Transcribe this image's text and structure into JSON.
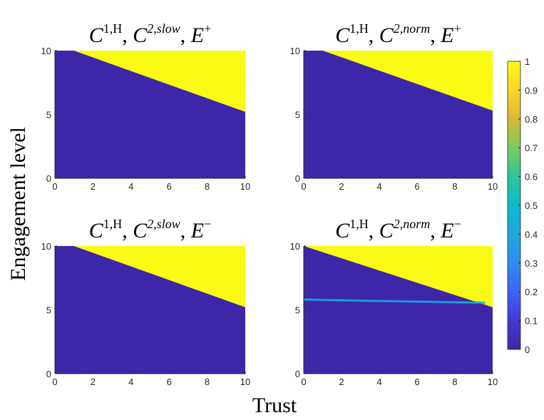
{
  "figure": {
    "xlabel": "Trust",
    "ylabel": "Engagement  level"
  },
  "chart_data": [
    {
      "type": "heatmap",
      "title": {
        "c1_sup": "1,H",
        "c2_sup": "2,slow",
        "e_sup": "+"
      },
      "xlim": [
        0,
        10
      ],
      "ylim": [
        0,
        10
      ],
      "xticks": [
        0,
        2,
        4,
        6,
        8,
        10
      ],
      "yticks": [
        0,
        5,
        10
      ],
      "boundary_line": {
        "x": [
          1.0,
          10
        ],
        "y": [
          10,
          5.2
        ]
      },
      "region_above_value": 1,
      "region_below_value": 0,
      "band": null
    },
    {
      "type": "heatmap",
      "title": {
        "c1_sup": "1,H",
        "c2_sup": "2,norm",
        "e_sup": "+"
      },
      "xlim": [
        0,
        10
      ],
      "ylim": [
        0,
        10
      ],
      "xticks": [
        0,
        2,
        4,
        6,
        8,
        10
      ],
      "yticks": [
        0,
        5,
        10
      ],
      "boundary_line": {
        "x": [
          1.0,
          10
        ],
        "y": [
          10,
          5.3
        ]
      },
      "region_above_value": 1,
      "region_below_value": 0,
      "band": null
    },
    {
      "type": "heatmap",
      "title": {
        "c1_sup": "1,H",
        "c2_sup": "2,slow",
        "e_sup": "−"
      },
      "xlim": [
        0,
        10
      ],
      "ylim": [
        0,
        10
      ],
      "xticks": [
        0,
        2,
        4,
        6,
        8,
        10
      ],
      "yticks": [
        0,
        5,
        10
      ],
      "boundary_line": {
        "x": [
          1.0,
          10
        ],
        "y": [
          10,
          5.2
        ]
      },
      "region_above_value": 1,
      "region_below_value": 0,
      "band": null
    },
    {
      "type": "heatmap",
      "title": {
        "c1_sup": "1,H",
        "c2_sup": "2,norm",
        "e_sup": "−"
      },
      "xlim": [
        0,
        10
      ],
      "ylim": [
        0,
        10
      ],
      "xticks": [
        0,
        2,
        4,
        6,
        8,
        10
      ],
      "yticks": [
        0,
        5,
        10
      ],
      "boundary_line": {
        "x": [
          0.0,
          10
        ],
        "y": [
          10,
          5.2
        ]
      },
      "region_above_value": 1,
      "region_below_value": 0,
      "band": {
        "x": [
          0,
          9.6
        ],
        "y": [
          5.8,
          5.55
        ],
        "peak_value": 0.35
      }
    }
  ],
  "colorbar": {
    "min": 0,
    "max": 1,
    "ticks": [
      "0",
      "0.1",
      "0.2",
      "0.3",
      "0.4",
      "0.5",
      "0.6",
      "0.7",
      "0.8",
      "0.9",
      "1"
    ],
    "colormap": "parula",
    "low_color": "#3e26a8",
    "high_color": "#f9fb15"
  }
}
